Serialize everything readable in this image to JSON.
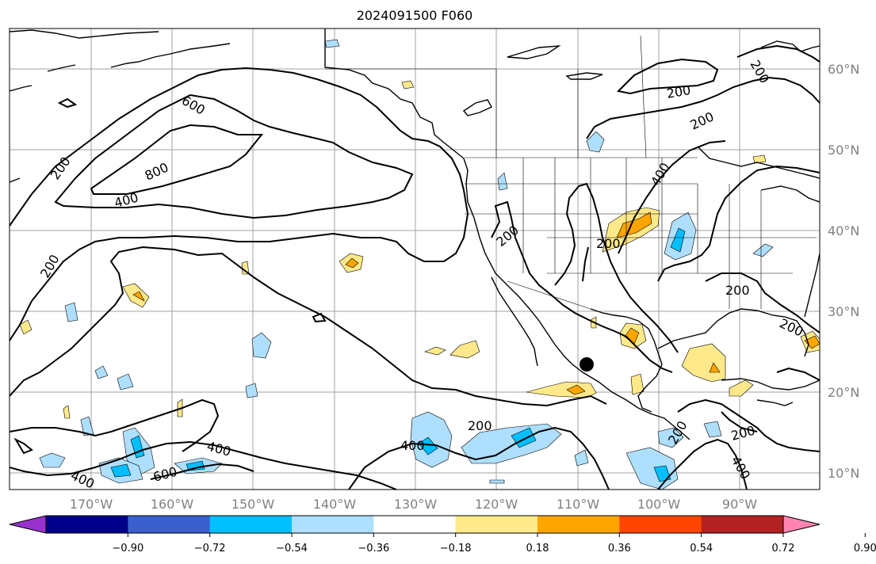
{
  "title": "2024091500 F060",
  "lat_labels": [
    "60°N",
    "50°N",
    "40°N",
    "30°N",
    "20°N",
    "10°N"
  ],
  "lon_labels": [
    "170°W",
    "160°W",
    "150°W",
    "140°W",
    "130°W",
    "120°W",
    "110°W",
    "100°W",
    "90°W"
  ],
  "contour_labels": {
    "c200_nw": "200",
    "c600_n": "600",
    "c800": "800",
    "c400_n": "400",
    "c200_w": "200",
    "c400_s": "400",
    "c600_s": "600",
    "c400_sw": "400",
    "c400_mid": "400",
    "c200_mid": "200",
    "c200_us": "200",
    "c200_us2": "200",
    "c400_us": "400",
    "c200_ne": "200",
    "c200_ne2": "200",
    "c200_far_ne": "200",
    "c200_gulf": "200",
    "c200_fl": "200",
    "c200_ca": "200",
    "c200_ca2": "200",
    "c400_ca": "400"
  },
  "colorbar": {
    "colors": [
      "#9932cc",
      "#00008b",
      "#3a5fcd",
      "#00bfff",
      "#aedfff",
      "#ffffff",
      "#ffe98a",
      "#ffa500",
      "#ff4500",
      "#b22222",
      "#ff85b0"
    ],
    "tick_labels": [
      "−0.90",
      "−0.72",
      "−0.54",
      "−0.36",
      "−0.18",
      "0.18",
      "0.36",
      "0.54",
      "0.72",
      "0.90"
    ]
  },
  "fill_colors": {
    "light_blue": "#aedfff",
    "blue": "#00bfff",
    "yellow": "#ffe98a",
    "orange": "#ffa500"
  }
}
